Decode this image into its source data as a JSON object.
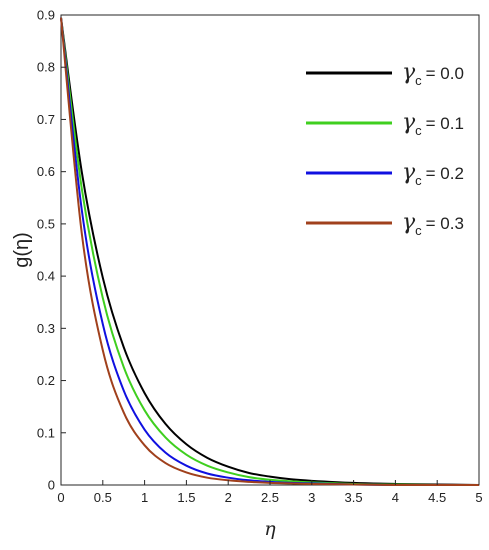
{
  "chart_data": {
    "type": "line",
    "title": "",
    "xlabel": "η",
    "ylabel": "g(η)",
    "xlim": [
      0,
      5
    ],
    "ylim": [
      0,
      0.9
    ],
    "xticks": [
      0,
      0.5,
      1,
      1.5,
      2,
      2.5,
      3,
      3.5,
      4,
      4.5,
      5
    ],
    "xtick_labels": [
      "0",
      "0.5",
      "1",
      "1.5",
      "2",
      "2.5",
      "3",
      "3.5",
      "4",
      "4.5",
      "5"
    ],
    "yticks": [
      0,
      0.1,
      0.2,
      0.3,
      0.4,
      0.5,
      0.6,
      0.7,
      0.8,
      0.9
    ],
    "ytick_labels": [
      "0",
      "0.1",
      "0.2",
      "0.3",
      "0.4",
      "0.5",
      "0.6",
      "0.7",
      "0.8",
      "0.9"
    ],
    "grid": false,
    "legend_position": "top-right",
    "x": [
      0,
      0.25,
      0.5,
      0.75,
      1,
      1.25,
      1.5,
      1.75,
      2,
      2.25,
      2.5,
      2.75,
      3,
      3.5,
      4,
      4.5,
      5
    ],
    "series": [
      {
        "legend_symbol": "γ",
        "legend_sub": "c",
        "legend_value": "= 0.0",
        "color": "#000000",
        "values": [
          0.895,
          0.598,
          0.397,
          0.264,
          0.176,
          0.117,
          0.078,
          0.052,
          0.035,
          0.023,
          0.016,
          0.011,
          0.008,
          0.004,
          0.002,
          0.001,
          0.0
        ]
      },
      {
        "legend_symbol": "γ",
        "legend_sub": "c",
        "legend_value": "= 0.1",
        "color": "#3fcf1f",
        "values": [
          0.895,
          0.566,
          0.358,
          0.226,
          0.143,
          0.091,
          0.058,
          0.037,
          0.024,
          0.015,
          0.01,
          0.007,
          0.005,
          0.002,
          0.001,
          0.0,
          0.0
        ]
      },
      {
        "legend_symbol": "γ",
        "legend_sub": "c",
        "legend_value": "= 0.2",
        "color": "#1010e0",
        "values": [
          0.895,
          0.525,
          0.308,
          0.181,
          0.106,
          0.062,
          0.037,
          0.022,
          0.014,
          0.009,
          0.006,
          0.004,
          0.003,
          0.001,
          0.0,
          0.0,
          0.0
        ]
      },
      {
        "legend_symbol": "γ",
        "legend_sub": "c",
        "legend_value": "= 0.3",
        "color": "#a0401c",
        "values": [
          0.895,
          0.48,
          0.258,
          0.139,
          0.076,
          0.042,
          0.024,
          0.014,
          0.009,
          0.006,
          0.004,
          0.003,
          0.002,
          0.001,
          0.0,
          0.0,
          0.0
        ]
      }
    ]
  }
}
